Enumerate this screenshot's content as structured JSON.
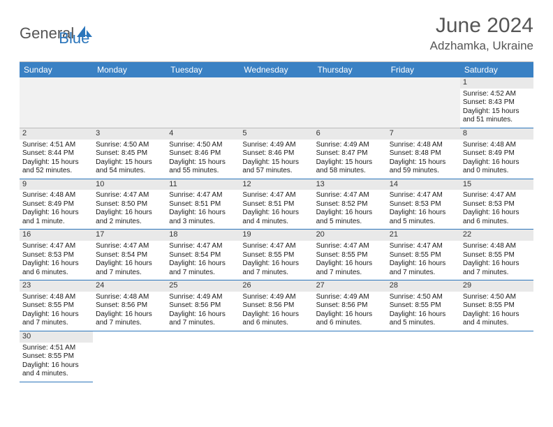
{
  "logo": {
    "text_gray": "General",
    "text_blue": "Blue",
    "icon_color": "#2a75bb"
  },
  "title": "June 2024",
  "location": "Adzhamka, Ukraine",
  "colors": {
    "header_bg": "#3a81c4",
    "header_text": "#ffffff",
    "daynum_bg": "#e9e9e9",
    "cell_border": "#2a75bb",
    "empty_bg": "#f1f1f1",
    "title_color": "#555555"
  },
  "weekdays": [
    "Sunday",
    "Monday",
    "Tuesday",
    "Wednesday",
    "Thursday",
    "Friday",
    "Saturday"
  ],
  "leading_empty": 6,
  "days": [
    {
      "n": 1,
      "sunrise": "4:52 AM",
      "sunset": "8:43 PM",
      "daylight": "15 hours and 51 minutes."
    },
    {
      "n": 2,
      "sunrise": "4:51 AM",
      "sunset": "8:44 PM",
      "daylight": "15 hours and 52 minutes."
    },
    {
      "n": 3,
      "sunrise": "4:50 AM",
      "sunset": "8:45 PM",
      "daylight": "15 hours and 54 minutes."
    },
    {
      "n": 4,
      "sunrise": "4:50 AM",
      "sunset": "8:46 PM",
      "daylight": "15 hours and 55 minutes."
    },
    {
      "n": 5,
      "sunrise": "4:49 AM",
      "sunset": "8:46 PM",
      "daylight": "15 hours and 57 minutes."
    },
    {
      "n": 6,
      "sunrise": "4:49 AM",
      "sunset": "8:47 PM",
      "daylight": "15 hours and 58 minutes."
    },
    {
      "n": 7,
      "sunrise": "4:48 AM",
      "sunset": "8:48 PM",
      "daylight": "15 hours and 59 minutes."
    },
    {
      "n": 8,
      "sunrise": "4:48 AM",
      "sunset": "8:49 PM",
      "daylight": "16 hours and 0 minutes."
    },
    {
      "n": 9,
      "sunrise": "4:48 AM",
      "sunset": "8:49 PM",
      "daylight": "16 hours and 1 minute."
    },
    {
      "n": 10,
      "sunrise": "4:47 AM",
      "sunset": "8:50 PM",
      "daylight": "16 hours and 2 minutes."
    },
    {
      "n": 11,
      "sunrise": "4:47 AM",
      "sunset": "8:51 PM",
      "daylight": "16 hours and 3 minutes."
    },
    {
      "n": 12,
      "sunrise": "4:47 AM",
      "sunset": "8:51 PM",
      "daylight": "16 hours and 4 minutes."
    },
    {
      "n": 13,
      "sunrise": "4:47 AM",
      "sunset": "8:52 PM",
      "daylight": "16 hours and 5 minutes."
    },
    {
      "n": 14,
      "sunrise": "4:47 AM",
      "sunset": "8:53 PM",
      "daylight": "16 hours and 5 minutes."
    },
    {
      "n": 15,
      "sunrise": "4:47 AM",
      "sunset": "8:53 PM",
      "daylight": "16 hours and 6 minutes."
    },
    {
      "n": 16,
      "sunrise": "4:47 AM",
      "sunset": "8:53 PM",
      "daylight": "16 hours and 6 minutes."
    },
    {
      "n": 17,
      "sunrise": "4:47 AM",
      "sunset": "8:54 PM",
      "daylight": "16 hours and 7 minutes."
    },
    {
      "n": 18,
      "sunrise": "4:47 AM",
      "sunset": "8:54 PM",
      "daylight": "16 hours and 7 minutes."
    },
    {
      "n": 19,
      "sunrise": "4:47 AM",
      "sunset": "8:55 PM",
      "daylight": "16 hours and 7 minutes."
    },
    {
      "n": 20,
      "sunrise": "4:47 AM",
      "sunset": "8:55 PM",
      "daylight": "16 hours and 7 minutes."
    },
    {
      "n": 21,
      "sunrise": "4:47 AM",
      "sunset": "8:55 PM",
      "daylight": "16 hours and 7 minutes."
    },
    {
      "n": 22,
      "sunrise": "4:48 AM",
      "sunset": "8:55 PM",
      "daylight": "16 hours and 7 minutes."
    },
    {
      "n": 23,
      "sunrise": "4:48 AM",
      "sunset": "8:55 PM",
      "daylight": "16 hours and 7 minutes."
    },
    {
      "n": 24,
      "sunrise": "4:48 AM",
      "sunset": "8:56 PM",
      "daylight": "16 hours and 7 minutes."
    },
    {
      "n": 25,
      "sunrise": "4:49 AM",
      "sunset": "8:56 PM",
      "daylight": "16 hours and 7 minutes."
    },
    {
      "n": 26,
      "sunrise": "4:49 AM",
      "sunset": "8:56 PM",
      "daylight": "16 hours and 6 minutes."
    },
    {
      "n": 27,
      "sunrise": "4:49 AM",
      "sunset": "8:56 PM",
      "daylight": "16 hours and 6 minutes."
    },
    {
      "n": 28,
      "sunrise": "4:50 AM",
      "sunset": "8:55 PM",
      "daylight": "16 hours and 5 minutes."
    },
    {
      "n": 29,
      "sunrise": "4:50 AM",
      "sunset": "8:55 PM",
      "daylight": "16 hours and 4 minutes."
    },
    {
      "n": 30,
      "sunrise": "4:51 AM",
      "sunset": "8:55 PM",
      "daylight": "16 hours and 4 minutes."
    }
  ],
  "labels": {
    "sunrise": "Sunrise:",
    "sunset": "Sunset:",
    "daylight": "Daylight:"
  }
}
